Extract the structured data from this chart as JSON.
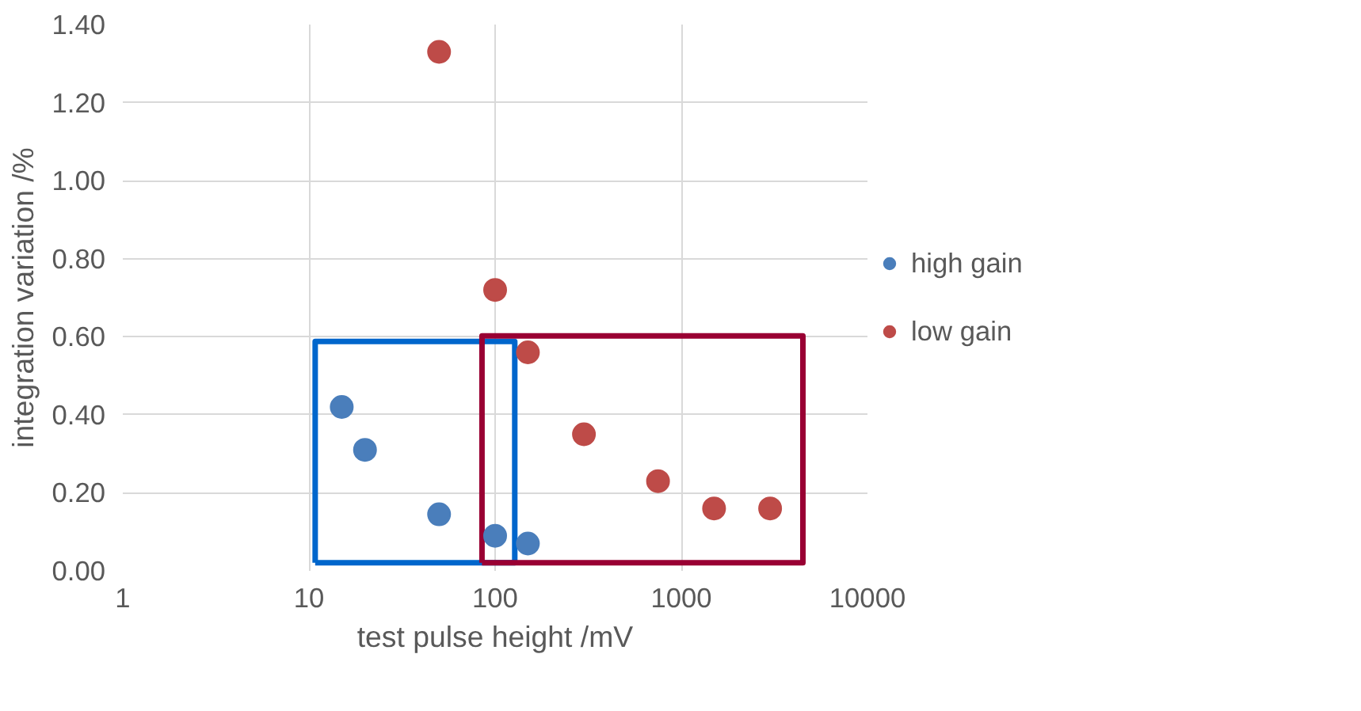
{
  "chart_data": {
    "type": "scatter",
    "xlabel": "test pulse height /mV",
    "ylabel": "integration variation /%",
    "log": "x",
    "grid": true,
    "legend": "right",
    "marker": "circle",
    "xlim": [
      1,
      10000
    ],
    "xticks": [
      1,
      10,
      100,
      1000,
      10000
    ],
    "ylim": [
      0,
      1.4
    ],
    "yticks": [
      {
        "value": 0,
        "label": "0.00"
      },
      {
        "value": 0.2,
        "label": "0.20"
      },
      {
        "value": 0.4,
        "label": "0.40"
      },
      {
        "value": 0.6,
        "label": "0.60"
      },
      {
        "value": 0.8,
        "label": "0.80"
      },
      {
        "value": 1.0,
        "label": "1.00"
      },
      {
        "value": 1.2,
        "label": "1.20"
      },
      {
        "value": 1.4,
        "label": "1.40"
      }
    ],
    "series": [
      {
        "name": "high gain",
        "color": "#4a7ebb",
        "x": [
          15,
          20,
          50,
          100,
          150
        ],
        "values": [
          0.42,
          0.31,
          0.145,
          0.09,
          0.07
        ]
      },
      {
        "name": "low gain",
        "color": "#be4b48",
        "x": [
          50,
          100,
          150,
          300,
          750,
          1500,
          3000
        ],
        "values": [
          1.33,
          0.72,
          0.56,
          0.35,
          0.23,
          0.16,
          0.16
        ]
      }
    ]
  }
}
